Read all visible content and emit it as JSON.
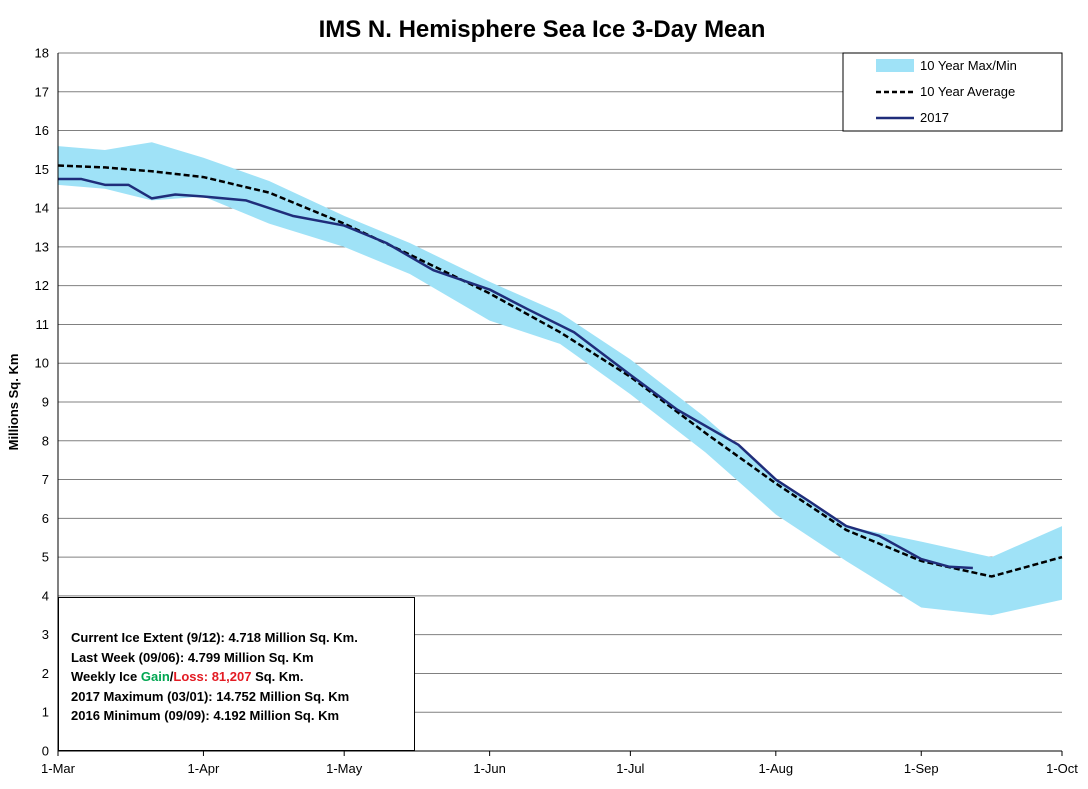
{
  "chart_data": {
    "type": "line",
    "title": "IMS N. Hemisphere Sea Ice 3-Day Mean",
    "ylabel": "Millions  Sq. Km",
    "xlabel": "",
    "ylim": [
      0,
      18
    ],
    "y_ticks": [
      "0",
      "1",
      "2",
      "3",
      "4",
      "5",
      "6",
      "7",
      "8",
      "9",
      "10",
      "11",
      "12",
      "13",
      "14",
      "15",
      "16",
      "17",
      "18"
    ],
    "x_ticks": [
      "1-Mar",
      "1-Apr",
      "1-May",
      "1-Jun",
      "1-Jul",
      "1-Aug",
      "1-Sep",
      "1-Oct"
    ],
    "x_tick_days": [
      0,
      31,
      61,
      92,
      122,
      153,
      184,
      214
    ],
    "x_range_days": [
      0,
      214
    ],
    "grid": "horizontal",
    "legend_position": "top-right",
    "colors": {
      "band": "#9fe2f7",
      "average": "#000000",
      "current": "#1f2d7a",
      "grid": "#808080"
    },
    "series": [
      {
        "name": "10 Year Max/Min",
        "kind": "band",
        "x_days": [
          0,
          10,
          20,
          31,
          45,
          61,
          75,
          92,
          107,
          122,
          138,
          153,
          168,
          184,
          199,
          214
        ],
        "upper": [
          15.6,
          15.5,
          15.7,
          15.3,
          14.7,
          13.8,
          13.1,
          12.1,
          11.3,
          10.1,
          8.6,
          7.0,
          5.8,
          5.4,
          5.0,
          5.8
        ],
        "lower": [
          14.6,
          14.5,
          14.2,
          14.3,
          13.6,
          13.0,
          12.3,
          11.1,
          10.5,
          9.2,
          7.7,
          6.1,
          4.9,
          3.7,
          3.5,
          3.9
        ]
      },
      {
        "name": "10 Year Average",
        "kind": "dashed",
        "x_days": [
          0,
          10,
          20,
          31,
          45,
          61,
          75,
          92,
          107,
          122,
          138,
          153,
          168,
          184,
          199,
          214
        ],
        "values": [
          15.1,
          15.05,
          14.95,
          14.8,
          14.4,
          13.6,
          12.8,
          11.8,
          10.8,
          9.65,
          8.2,
          6.9,
          5.7,
          4.9,
          4.5,
          5.0
        ]
      },
      {
        "name": "2017",
        "kind": "solid",
        "x_days": [
          0,
          5,
          10,
          15,
          20,
          25,
          31,
          40,
          50,
          61,
          70,
          80,
          92,
          100,
          110,
          122,
          132,
          145,
          153,
          160,
          168,
          175,
          184,
          190,
          195
        ],
        "values": [
          14.75,
          14.75,
          14.6,
          14.6,
          14.25,
          14.35,
          14.3,
          14.2,
          13.8,
          13.55,
          13.1,
          12.4,
          11.9,
          11.4,
          10.8,
          9.7,
          8.8,
          7.9,
          7.0,
          6.45,
          5.8,
          5.55,
          4.95,
          4.75,
          4.72
        ]
      }
    ]
  },
  "legend": {
    "items": [
      "10 Year Max/Min",
      "10 Year Average",
      "2017"
    ]
  },
  "stats": {
    "current_label": "Current Ice Extent (9/12):",
    "current_value": "4.718 Million Sq. Km.",
    "lastweek_label": "Last Week (09/06):",
    "lastweek_value": "4.799 Million Sq. Km",
    "weekly_prefix": "Weekly Ice ",
    "weekly_gain": "Gain",
    "weekly_sep": "/",
    "weekly_loss": "Loss:",
    "weekly_value": " 81,207",
    "weekly_suffix": " Sq. Km.",
    "max_label": "2017 Maximum (03/01):",
    "max_value": "14.752  Million Sq. Km",
    "min_label": "2016 Minimum (09/09):",
    "min_value": "4.192 Million Sq. Km"
  }
}
